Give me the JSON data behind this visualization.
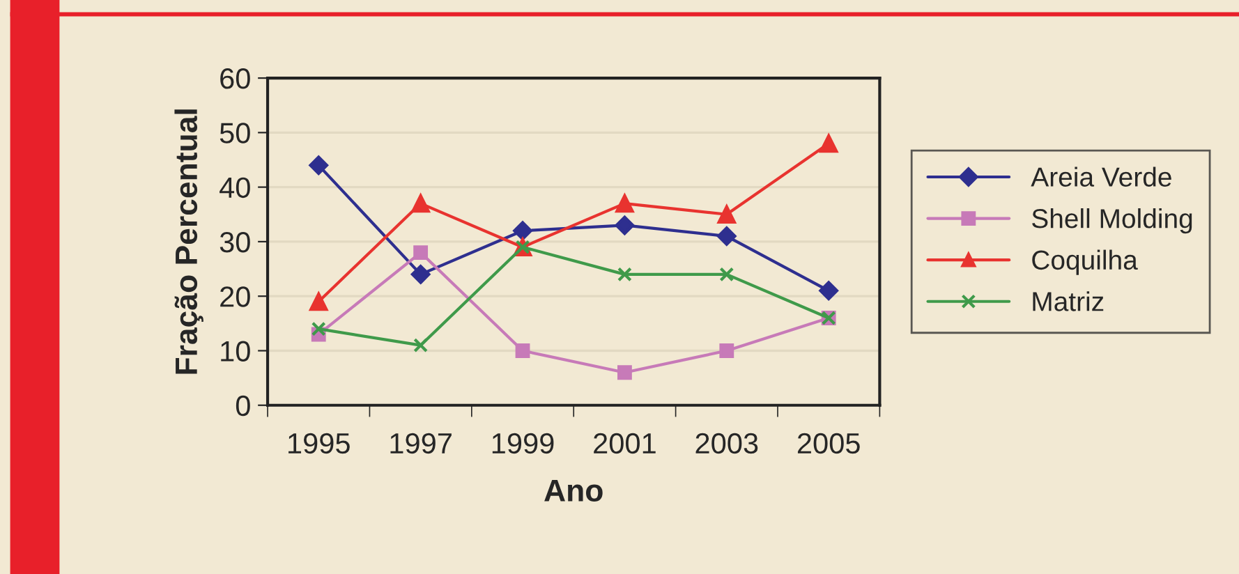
{
  "chart_data": {
    "type": "line",
    "xlabel": "Ano",
    "ylabel": "Fração Percentual",
    "categories": [
      "1995",
      "1997",
      "1999",
      "2001",
      "2003",
      "2005"
    ],
    "series": [
      {
        "name": "Areia Verde",
        "color": "#2e2f8f",
        "marker": "diamond",
        "values": [
          44,
          24,
          32,
          33,
          31,
          21
        ]
      },
      {
        "name": "Shell Molding",
        "color": "#c77ab8",
        "marker": "square",
        "values": [
          13,
          28,
          10,
          6,
          10,
          16
        ]
      },
      {
        "name": "Coquilha",
        "color": "#e8332f",
        "marker": "triangle",
        "values": [
          19,
          37,
          29,
          37,
          35,
          48
        ]
      },
      {
        "name": "Matriz",
        "color": "#3f9a4a",
        "marker": "cross",
        "values": [
          14,
          11,
          29,
          24,
          24,
          16
        ]
      }
    ],
    "ylim": [
      0,
      60
    ],
    "yticks": [
      0,
      10,
      20,
      30,
      40,
      50,
      60
    ],
    "grid": "y",
    "legend": "right",
    "line_style": "solid"
  }
}
